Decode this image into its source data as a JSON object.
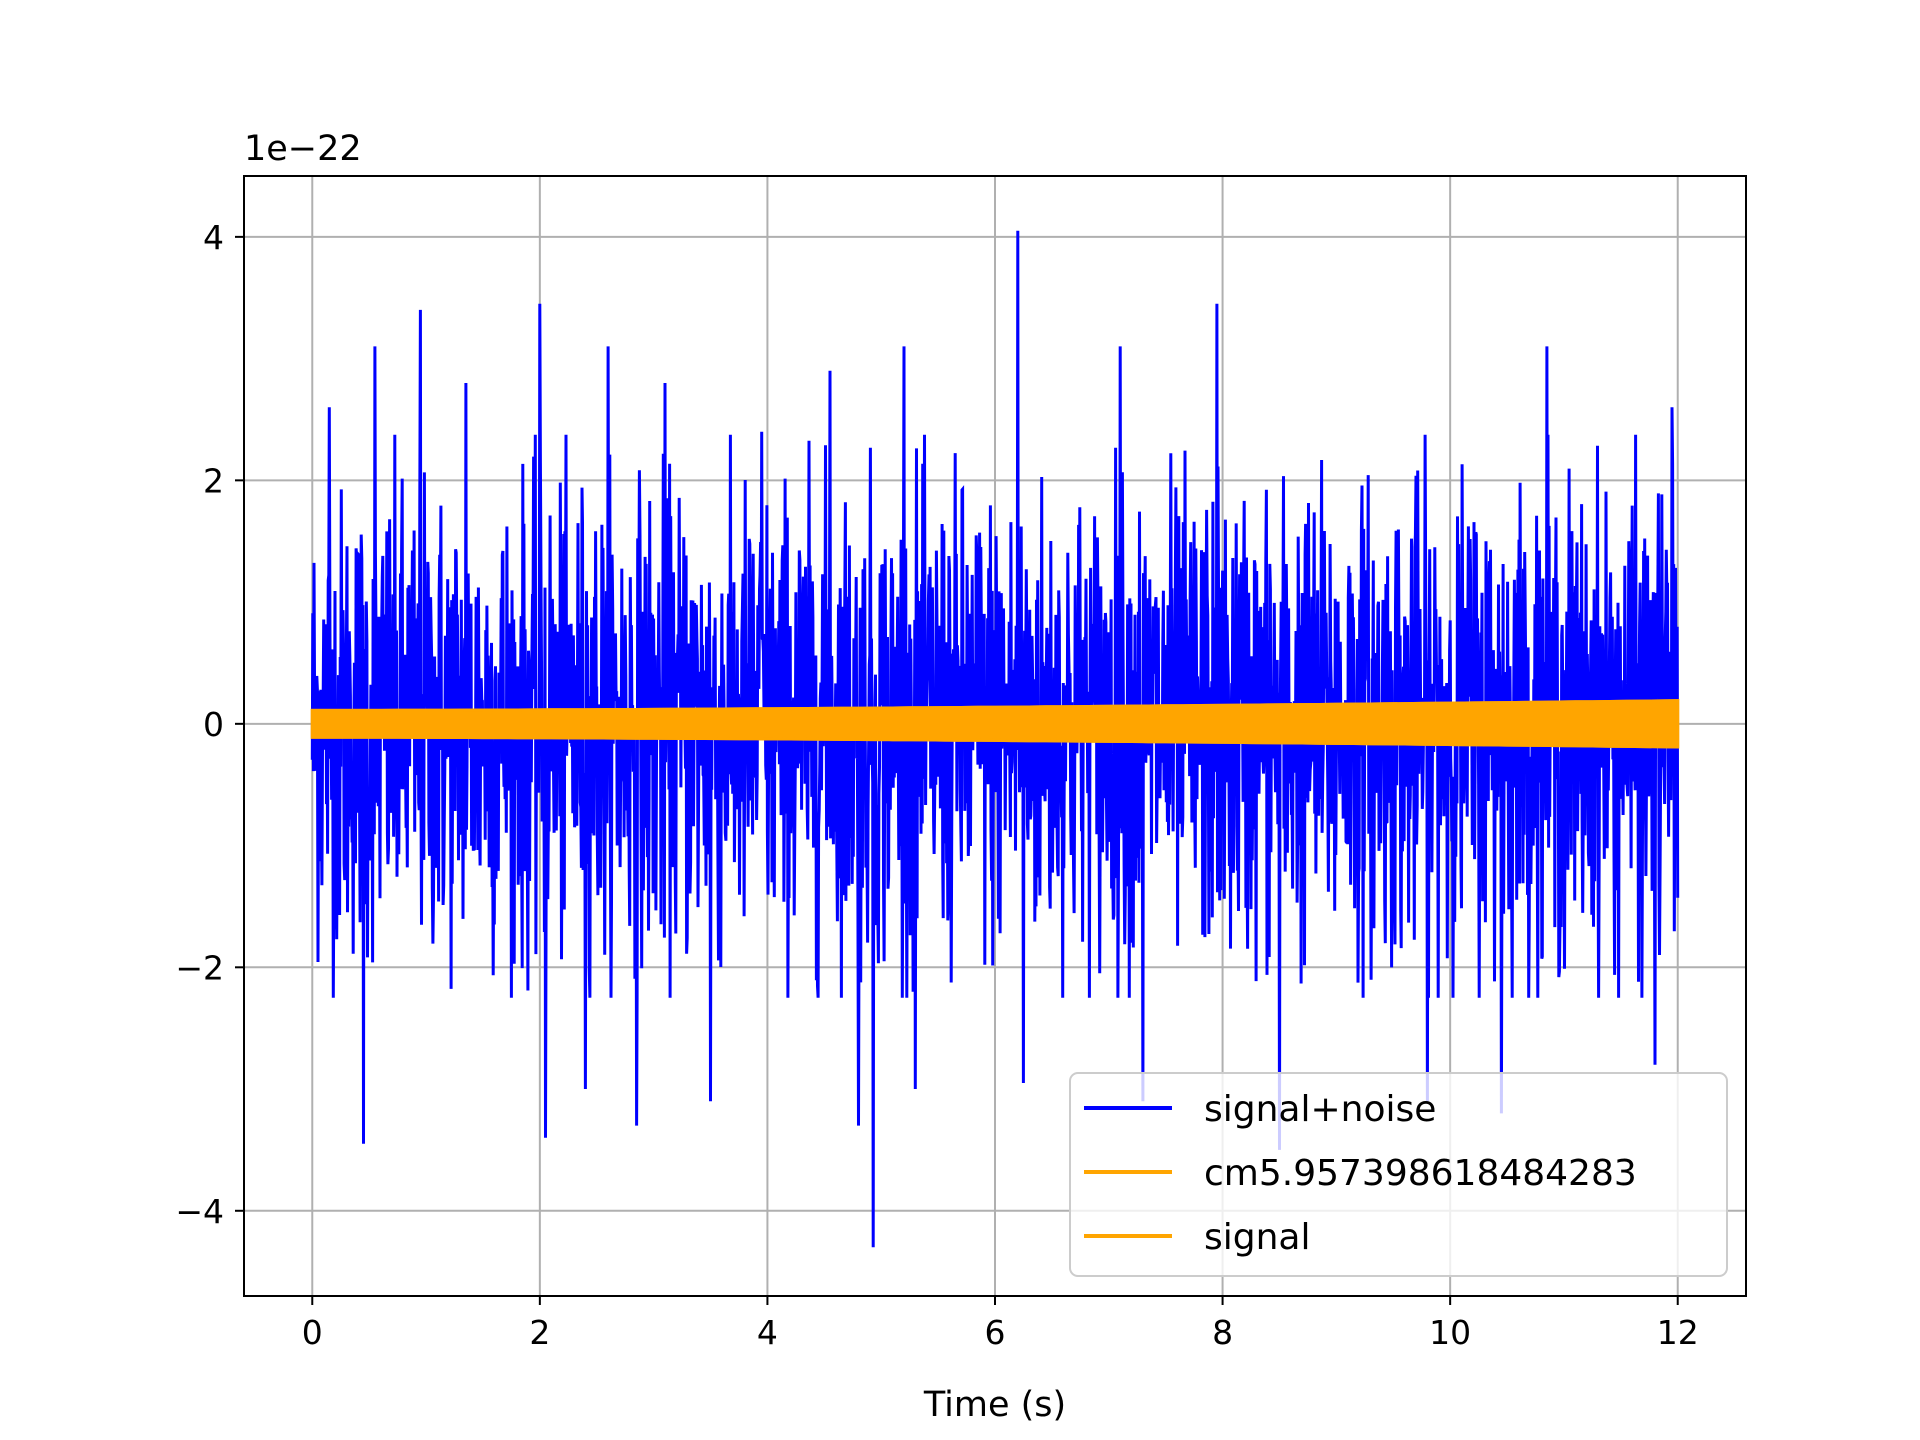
{
  "chart_data": {
    "type": "line",
    "title": "",
    "xlabel": "Time (s)",
    "ylabel": "",
    "y_offset_label": "1e−22",
    "xlim": [
      -0.6,
      12.6
    ],
    "ylim": [
      -4.7,
      4.5
    ],
    "x_ticks": [
      0,
      2,
      4,
      6,
      8,
      10,
      12
    ],
    "x_tick_labels": [
      "0",
      "2",
      "4",
      "6",
      "8",
      "10",
      "12"
    ],
    "y_ticks": [
      -4,
      -2,
      0,
      2,
      4
    ],
    "y_tick_labels": [
      "−4",
      "−2",
      "0",
      "2",
      "4"
    ],
    "grid": true,
    "legend_position": "lower-right",
    "series": [
      {
        "name": "signal+noise",
        "color": "#0000ff",
        "x_range": [
          0,
          12
        ],
        "description_values": {
          "peak_max": 4.05,
          "peak_max_time": 6.2,
          "peak_min": -4.3,
          "peak_min_time": 4.93,
          "typical_upper": 1.9,
          "typical_lower": -1.8
        },
        "spikes": [
          {
            "x": 0.15,
            "y": 2.6
          },
          {
            "x": 0.45,
            "y": -3.45
          },
          {
            "x": 0.55,
            "y": 3.1
          },
          {
            "x": 0.95,
            "y": 3.4
          },
          {
            "x": 1.35,
            "y": 2.8
          },
          {
            "x": 2.0,
            "y": 3.45
          },
          {
            "x": 2.05,
            "y": -3.4
          },
          {
            "x": 2.4,
            "y": -3.0
          },
          {
            "x": 2.6,
            "y": 3.1
          },
          {
            "x": 2.85,
            "y": -3.3
          },
          {
            "x": 3.1,
            "y": 2.8
          },
          {
            "x": 3.5,
            "y": -3.1
          },
          {
            "x": 3.95,
            "y": 2.4
          },
          {
            "x": 4.55,
            "y": 2.9
          },
          {
            "x": 4.8,
            "y": -3.3
          },
          {
            "x": 4.93,
            "y": -4.3
          },
          {
            "x": 5.2,
            "y": 3.1
          },
          {
            "x": 5.3,
            "y": -3.0
          },
          {
            "x": 6.2,
            "y": 4.05
          },
          {
            "x": 6.25,
            "y": -2.95
          },
          {
            "x": 7.1,
            "y": 3.1
          },
          {
            "x": 7.3,
            "y": -3.1
          },
          {
            "x": 7.95,
            "y": 3.45
          },
          {
            "x": 8.5,
            "y": -3.5
          },
          {
            "x": 9.8,
            "y": -3.1
          },
          {
            "x": 10.45,
            "y": -3.2
          },
          {
            "x": 10.85,
            "y": 3.1
          },
          {
            "x": 11.8,
            "y": -2.8
          },
          {
            "x": 11.95,
            "y": 2.6
          }
        ]
      },
      {
        "name": "cm5.957398618484283",
        "color": "#ffa500",
        "x_range": [
          0,
          12
        ],
        "amplitude_start": 0.11,
        "amplitude_end": 0.19
      },
      {
        "name": "signal",
        "color": "#ffa500",
        "x_range": [
          0,
          12
        ],
        "amplitude_start": 0.11,
        "amplitude_end": 0.19
      }
    ]
  }
}
